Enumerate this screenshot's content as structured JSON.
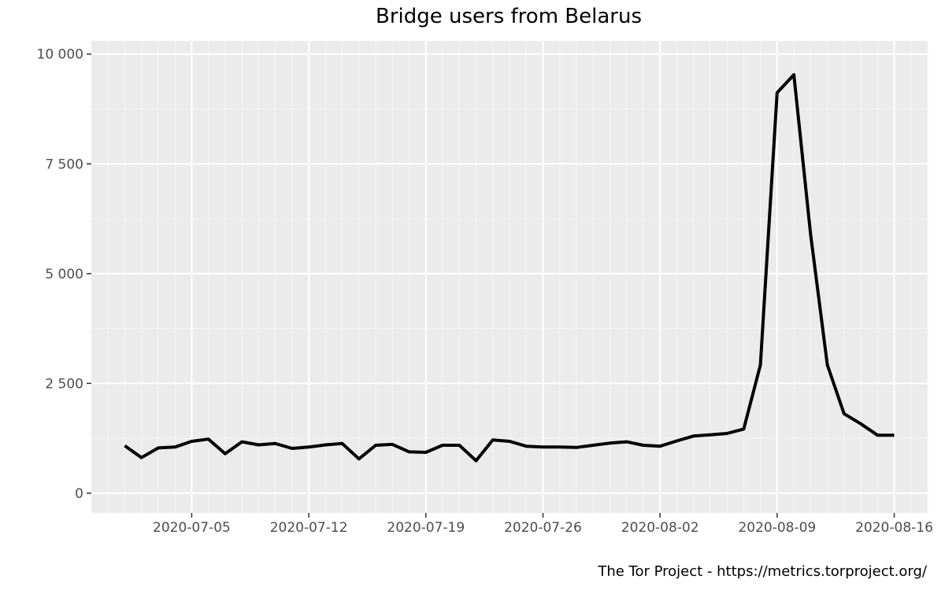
{
  "chart_data": {
    "type": "line",
    "title": "Bridge users from Belarus",
    "caption": "The Tor Project - https://metrics.torproject.org/",
    "xlabel": "",
    "ylabel": "",
    "x_tick_labels": [
      "2020-07-05",
      "2020-07-12",
      "2020-07-19",
      "2020-07-26",
      "2020-08-02",
      "2020-08-09",
      "2020-08-16"
    ],
    "y_tick_labels": [
      "0",
      "2 500",
      "5 000",
      "7 500",
      "10 000"
    ],
    "y_ticks": [
      0,
      2500,
      5000,
      7500,
      10000
    ],
    "xlim": [
      "2020-06-29",
      "2020-08-18"
    ],
    "ylim": [
      -450,
      10300
    ],
    "grid": true,
    "legend": "none",
    "series": [
      {
        "x": [
          "2020-07-01",
          "2020-07-02",
          "2020-07-03",
          "2020-07-04",
          "2020-07-05",
          "2020-07-06",
          "2020-07-07",
          "2020-07-08",
          "2020-07-09",
          "2020-07-10",
          "2020-07-11",
          "2020-07-12",
          "2020-07-13",
          "2020-07-14",
          "2020-07-15",
          "2020-07-16",
          "2020-07-17",
          "2020-07-18",
          "2020-07-19",
          "2020-07-20",
          "2020-07-21",
          "2020-07-22",
          "2020-07-23",
          "2020-07-24",
          "2020-07-25",
          "2020-07-26",
          "2020-07-27",
          "2020-07-28",
          "2020-07-29",
          "2020-07-30",
          "2020-07-31",
          "2020-08-01",
          "2020-08-02",
          "2020-08-03",
          "2020-08-04",
          "2020-08-05",
          "2020-08-06",
          "2020-08-07",
          "2020-08-08",
          "2020-08-09",
          "2020-08-10",
          "2020-08-11",
          "2020-08-12",
          "2020-08-13",
          "2020-08-14",
          "2020-08-15",
          "2020-08-16"
        ],
        "values": [
          1080,
          810,
          1030,
          1050,
          1180,
          1230,
          900,
          1170,
          1100,
          1130,
          1020,
          1050,
          1100,
          1130,
          780,
          1090,
          1110,
          940,
          930,
          1090,
          1090,
          740,
          1210,
          1180,
          1070,
          1050,
          1050,
          1040,
          1090,
          1140,
          1170,
          1090,
          1070,
          1190,
          1300,
          1330,
          1360,
          1460,
          2920,
          9120,
          9530,
          5900,
          2920,
          1810,
          1580,
          1320,
          1320
        ],
        "color": "#000000"
      }
    ],
    "colors": {
      "panel_background": "#ebebeb",
      "grid_major": "#ffffff",
      "grid_minor": "#f5f5f5",
      "tick_label": "#4d4d4d",
      "tick_mark": "#333333",
      "line": "#000000"
    }
  }
}
